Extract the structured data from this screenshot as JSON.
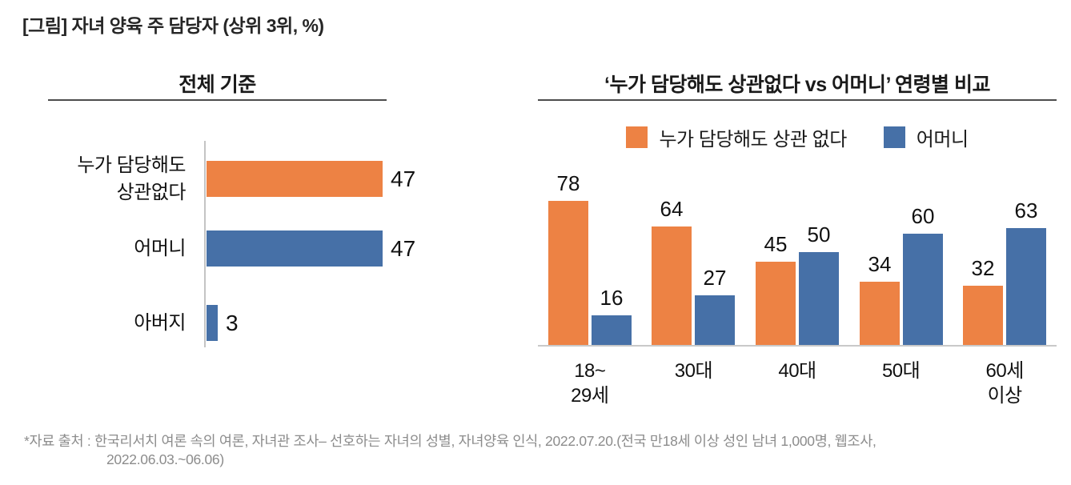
{
  "page": {
    "title": "[그림] 자녀 양육 주 담당자 (상위 3위, %)"
  },
  "colors": {
    "orange": "#ED8244",
    "blue": "#4670A7",
    "rule_dark": "#4d4d4d",
    "axis_gray": "#c9c9c9",
    "footer_gray": "#8c8c8c"
  },
  "footer": {
    "line1": "*자료 출처 : 한국리서치 여론 속의 여론, 자녀관 조사– 선호하는 자녀의 성별, 자녀양육 인식, 2022.07.20.(전국 만18세 이상 성인 남녀 1,000명, 웹조사,",
    "line2": "2022.06.03.~06.06)"
  },
  "chart_data": [
    {
      "type": "bar",
      "orientation": "horizontal",
      "title": "전체 기준",
      "categories": [
        "누가 담당해도 상관없다",
        "어머니",
        "아버지"
      ],
      "categories_lines": [
        [
          "누가 담당해도",
          "상관없다"
        ],
        [
          "어머니"
        ],
        [
          "아버지"
        ]
      ],
      "values": [
        47,
        47,
        3
      ],
      "value_labels": [
        "47",
        "47",
        "3"
      ],
      "bar_colors": [
        "#ED8244",
        "#4670A7",
        "#4670A7"
      ],
      "unit": "%",
      "grid": false,
      "axis_labels_visible": false
    },
    {
      "type": "bar",
      "orientation": "vertical",
      "title": "‘누가 담당해도 상관없다 vs 어머니’ 연령별 비교",
      "categories": [
        "18~29세",
        "30대",
        "40대",
        "50대",
        "60세 이상"
      ],
      "categories_lines": [
        [
          "18~",
          "29세"
        ],
        [
          "30대"
        ],
        [
          "40대"
        ],
        [
          "50대"
        ],
        [
          "60세",
          "이상"
        ]
      ],
      "series": [
        {
          "name": "누가 담당해도 상관 없다",
          "color": "#ED8244",
          "values": [
            78,
            64,
            45,
            34,
            32
          ]
        },
        {
          "name": "어머니",
          "color": "#4670A7",
          "values": [
            16,
            27,
            50,
            60,
            63
          ]
        }
      ],
      "unit": "%",
      "grid": false,
      "legend_position": "top",
      "axis_labels_visible": false
    }
  ]
}
